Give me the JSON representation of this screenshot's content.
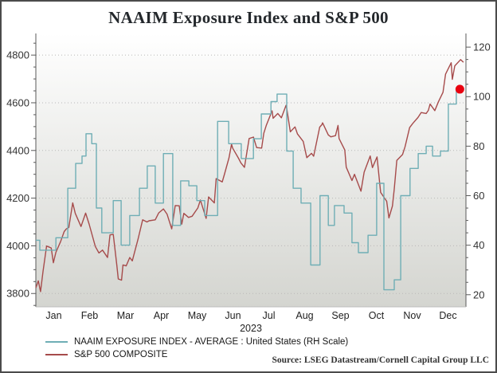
{
  "title": "NAAIM Exposure Index and S&P 500",
  "source_note": "Source: LSEG Datastream/Cornell Capital Group LLC",
  "legend": {
    "items": [
      {
        "label": "NAAIM EXPOSURE INDEX - AVERAGE : United States (RH Scale)",
        "color": "#6FAEB5"
      },
      {
        "label": "S&P 500 COMPOSITE",
        "color": "#A64B4B"
      }
    ]
  },
  "colors": {
    "axis_line": "#5a5a5a",
    "grid_line": "#b8b8b8",
    "tick_text": "#333333",
    "border": "#4b4b4b",
    "naaim_line": "#6FAEB5",
    "sp500_line": "#A64B4B",
    "marker_dot": "#E8000F",
    "plot_bg_top": "#ffffff",
    "plot_bg_bottom": "#d4d5d0"
  },
  "chart_data": {
    "type": "line",
    "title": "NAAIM Exposure Index and S&P 500",
    "x_axis": {
      "label": "2023",
      "tick_labels": [
        "Jan",
        "Feb",
        "Mar",
        "Apr",
        "May",
        "Jun",
        "Jul",
        "Aug",
        "Sep",
        "Oct",
        "Nov",
        "Dec"
      ],
      "range_months": [
        0,
        12
      ]
    },
    "left_axis": {
      "ticks": [
        4800,
        4600,
        4400,
        4200,
        4000,
        3800
      ],
      "minor_step": 50,
      "range": [
        3744,
        4874
      ]
    },
    "right_axis": {
      "ticks": [
        120,
        100,
        80,
        60,
        40,
        20
      ],
      "minor_step": 5,
      "range": [
        15.1,
        123.9
      ]
    },
    "grid": {
      "show": true,
      "align": "left_ticks",
      "style": "dotted"
    },
    "series": [
      {
        "name": "S&P 500 COMPOSITE",
        "axis": "left",
        "line": "linear",
        "color": "#A64B4B",
        "points": [
          [
            0.0,
            3824
          ],
          [
            0.07,
            3853
          ],
          [
            0.13,
            3808
          ],
          [
            0.2,
            3892
          ],
          [
            0.3,
            3999
          ],
          [
            0.43,
            3991
          ],
          [
            0.49,
            3929
          ],
          [
            0.56,
            3973
          ],
          [
            0.69,
            4017
          ],
          [
            0.79,
            4060
          ],
          [
            0.85,
            4071
          ],
          [
            0.92,
            4077
          ],
          [
            1.03,
            4180
          ],
          [
            1.1,
            4136
          ],
          [
            1.26,
            4081
          ],
          [
            1.39,
            4137
          ],
          [
            1.49,
            4090
          ],
          [
            1.66,
            3997
          ],
          [
            1.76,
            3970
          ],
          [
            1.86,
            3982
          ],
          [
            2.0,
            3951
          ],
          [
            2.07,
            4046
          ],
          [
            2.16,
            4048
          ],
          [
            2.26,
            3918
          ],
          [
            2.3,
            3861
          ],
          [
            2.39,
            3856
          ],
          [
            2.43,
            3920
          ],
          [
            2.52,
            3916
          ],
          [
            2.62,
            3951
          ],
          [
            2.69,
            3937
          ],
          [
            2.75,
            3971
          ],
          [
            2.85,
            4028
          ],
          [
            2.98,
            4109
          ],
          [
            3.1,
            4100
          ],
          [
            3.16,
            4105
          ],
          [
            3.33,
            4109
          ],
          [
            3.43,
            4138
          ],
          [
            3.56,
            4155
          ],
          [
            3.66,
            4133
          ],
          [
            3.79,
            4071
          ],
          [
            3.89,
            4169
          ],
          [
            4.0,
            4168
          ],
          [
            4.07,
            4091
          ],
          [
            4.13,
            4136
          ],
          [
            4.26,
            4119
          ],
          [
            4.36,
            4124
          ],
          [
            4.52,
            4159
          ],
          [
            4.59,
            4192
          ],
          [
            4.75,
            4115
          ],
          [
            4.82,
            4205
          ],
          [
            4.98,
            4180
          ],
          [
            5.03,
            4282
          ],
          [
            5.2,
            4268
          ],
          [
            5.26,
            4299
          ],
          [
            5.39,
            4369
          ],
          [
            5.46,
            4426
          ],
          [
            5.49,
            4410
          ],
          [
            5.66,
            4366
          ],
          [
            5.72,
            4348
          ],
          [
            5.82,
            4329
          ],
          [
            5.95,
            4450
          ],
          [
            6.07,
            4456
          ],
          [
            6.16,
            4412
          ],
          [
            6.3,
            4410
          ],
          [
            6.36,
            4472
          ],
          [
            6.43,
            4505
          ],
          [
            6.59,
            4566
          ],
          [
            6.62,
            4535
          ],
          [
            6.75,
            4555
          ],
          [
            6.85,
            4537
          ],
          [
            6.98,
            4589
          ],
          [
            7.0,
            4577
          ],
          [
            7.1,
            4478
          ],
          [
            7.23,
            4499
          ],
          [
            7.3,
            4469
          ],
          [
            7.46,
            4438
          ],
          [
            7.56,
            4370
          ],
          [
            7.69,
            4388
          ],
          [
            7.75,
            4376
          ],
          [
            7.92,
            4498
          ],
          [
            7.98,
            4508
          ],
          [
            8.0,
            4516
          ],
          [
            8.16,
            4465
          ],
          [
            8.23,
            4457
          ],
          [
            8.36,
            4462
          ],
          [
            8.43,
            4505
          ],
          [
            8.46,
            4450
          ],
          [
            8.62,
            4402
          ],
          [
            8.66,
            4330
          ],
          [
            8.82,
            4274
          ],
          [
            8.89,
            4300
          ],
          [
            8.92,
            4288
          ],
          [
            9.07,
            4229
          ],
          [
            9.16,
            4309
          ],
          [
            9.33,
            4377
          ],
          [
            9.39,
            4328
          ],
          [
            9.52,
            4373
          ],
          [
            9.62,
            4224
          ],
          [
            9.79,
            4187
          ],
          [
            9.85,
            4117
          ],
          [
            9.95,
            4167
          ],
          [
            10.0,
            4238
          ],
          [
            10.07,
            4358
          ],
          [
            10.23,
            4383
          ],
          [
            10.3,
            4415
          ],
          [
            10.43,
            4496
          ],
          [
            10.52,
            4514
          ],
          [
            10.66,
            4538
          ],
          [
            10.75,
            4559
          ],
          [
            10.89,
            4555
          ],
          [
            10.95,
            4568
          ],
          [
            11.0,
            4595
          ],
          [
            11.13,
            4567
          ],
          [
            11.23,
            4604
          ],
          [
            11.36,
            4644
          ],
          [
            11.43,
            4720
          ],
          [
            11.59,
            4768
          ],
          [
            11.62,
            4698
          ],
          [
            11.69,
            4755
          ],
          [
            11.85,
            4781
          ],
          [
            11.93,
            4770
          ]
        ]
      },
      {
        "name": "NAAIM EXPOSURE INDEX - AVERAGE : United States (RH Scale)",
        "axis": "right",
        "line": "step",
        "color": "#6FAEB5",
        "points": [
          [
            0.0,
            42
          ],
          [
            0.11,
            38
          ],
          [
            0.56,
            43
          ],
          [
            0.89,
            63
          ],
          [
            1.11,
            73
          ],
          [
            1.29,
            76
          ],
          [
            1.4,
            85
          ],
          [
            1.56,
            81
          ],
          [
            1.69,
            55
          ],
          [
            1.84,
            45
          ],
          [
            2.16,
            58
          ],
          [
            2.38,
            40
          ],
          [
            2.62,
            52
          ],
          [
            2.89,
            63
          ],
          [
            3.11,
            72
          ],
          [
            3.33,
            57
          ],
          [
            3.56,
            77
          ],
          [
            3.82,
            48
          ],
          [
            4.04,
            66
          ],
          [
            4.27,
            64
          ],
          [
            4.49,
            58
          ],
          [
            4.71,
            52
          ],
          [
            5.07,
            90
          ],
          [
            5.38,
            81
          ],
          [
            5.73,
            75
          ],
          [
            6.07,
            83
          ],
          [
            6.29,
            93
          ],
          [
            6.56,
            98
          ],
          [
            6.73,
            101
          ],
          [
            7.0,
            78
          ],
          [
            7.18,
            63
          ],
          [
            7.4,
            57
          ],
          [
            7.67,
            32
          ],
          [
            7.93,
            60
          ],
          [
            8.16,
            48
          ],
          [
            8.33,
            56
          ],
          [
            8.6,
            53
          ],
          [
            8.82,
            41
          ],
          [
            9.0,
            37
          ],
          [
            9.27,
            44
          ],
          [
            9.51,
            65
          ],
          [
            9.71,
            22
          ],
          [
            10.0,
            26
          ],
          [
            10.18,
            60
          ],
          [
            10.44,
            71
          ],
          [
            10.67,
            77
          ],
          [
            10.89,
            80
          ],
          [
            11.07,
            76
          ],
          [
            11.29,
            78
          ],
          [
            11.51,
            97
          ],
          [
            11.73,
            103
          ],
          [
            11.93,
            103
          ]
        ]
      }
    ],
    "marker": {
      "t": 11.83,
      "value": 103,
      "axis": "right",
      "color": "#E8000F"
    }
  }
}
